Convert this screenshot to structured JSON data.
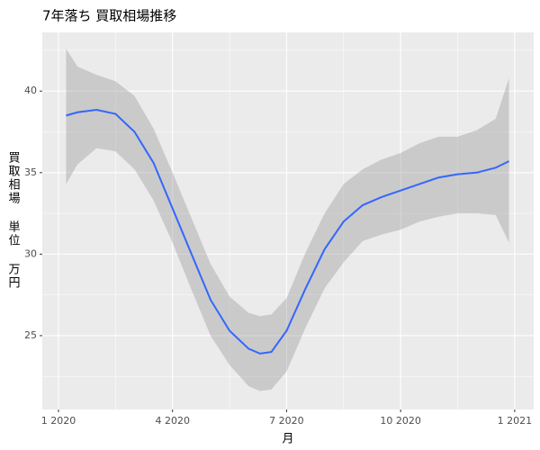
{
  "chart_data": {
    "type": "line",
    "title": "7年落ち 買取相場推移",
    "xlabel": "月",
    "ylabel": "買取相場 単位 万円",
    "x": [
      1.2,
      1.5,
      2,
      2.5,
      3,
      3.5,
      4,
      4.5,
      5,
      5.5,
      6,
      6.3,
      6.6,
      7,
      7.5,
      8,
      8.5,
      9,
      9.5,
      10,
      10.5,
      11,
      11.5,
      12,
      12.5,
      12.85
    ],
    "series": [
      {
        "color": "#3366ff",
        "band_color": "#999999",
        "values": [
          38.5,
          38.7,
          38.85,
          38.6,
          37.5,
          35.6,
          32.8,
          30.0,
          27.2,
          25.3,
          24.2,
          23.9,
          24.0,
          25.3,
          27.9,
          30.3,
          32.0,
          33.0,
          33.5,
          33.9,
          34.3,
          34.7,
          34.9,
          35.0,
          35.3,
          35.7
        ],
        "lower": [
          34.3,
          35.5,
          36.5,
          36.3,
          35.2,
          33.3,
          30.7,
          27.8,
          25.0,
          23.2,
          21.9,
          21.6,
          21.7,
          22.8,
          25.5,
          27.9,
          29.5,
          30.8,
          31.2,
          31.5,
          32.0,
          32.3,
          32.5,
          32.5,
          32.4,
          30.7
        ],
        "upper": [
          42.6,
          41.5,
          41.0,
          40.6,
          39.7,
          37.7,
          35.0,
          32.2,
          29.4,
          27.4,
          26.4,
          26.2,
          26.3,
          27.3,
          30.1,
          32.5,
          34.3,
          35.2,
          35.8,
          36.2,
          36.8,
          37.2,
          37.2,
          37.6,
          38.3,
          40.8
        ]
      }
    ],
    "xlim": [
      0.574,
      13.5
    ],
    "xticks": [
      {
        "value": 1,
        "label": "1 2020"
      },
      {
        "value": 4,
        "label": "4 2020"
      },
      {
        "value": 7,
        "label": "7 2020"
      },
      {
        "value": 10,
        "label": "10 2020"
      },
      {
        "value": 13,
        "label": "1 2021"
      }
    ],
    "ylim": [
      20.47,
      43.6
    ],
    "yticks": [
      25,
      30,
      35,
      40
    ],
    "grid": true
  }
}
